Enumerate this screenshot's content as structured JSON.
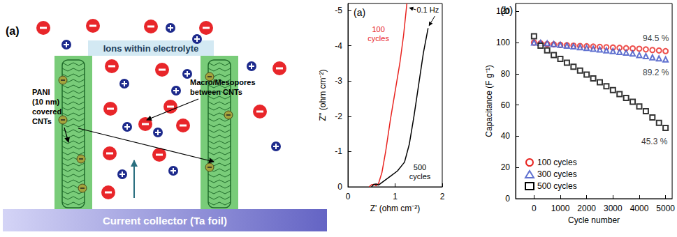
{
  "diagram": {
    "label": "(a)",
    "electrolyte_label": "Ions within electrolyte",
    "cnt_label": [
      "PANI",
      "(10 nm)",
      "covered",
      "CNTs"
    ],
    "pore_label": [
      "Macro/Mesopores",
      "between CNTs"
    ],
    "collector_label": "Current collector (Ta foil)"
  },
  "chart_data": [
    {
      "type": "line",
      "title": "(a)",
      "x_label": "Z' (ohm cm⁻²)",
      "y_label": "Z'' (ohm cm⁻²)",
      "xlim": [
        0,
        2
      ],
      "xticks": [
        0,
        1,
        2
      ],
      "ylim": [
        0,
        -5.2
      ],
      "yticks": [
        0,
        -1,
        -2,
        -3,
        -4,
        -5
      ],
      "grid": false,
      "annotation": "0.1 Hz",
      "series": [
        {
          "name": "100 cycles",
          "color": "#e8231f",
          "x": [
            0.45,
            0.5,
            0.55,
            0.6,
            0.65,
            0.72,
            0.8,
            0.9,
            1.0,
            1.1,
            1.18,
            1.25
          ],
          "values": [
            0,
            -0.06,
            -0.07,
            -0.03,
            -0.1,
            -0.4,
            -1.0,
            -1.9,
            -2.7,
            -3.5,
            -4.3,
            -5.2
          ]
        },
        {
          "name": "500 cycles",
          "color": "#000000",
          "x": [
            0.5,
            0.55,
            0.6,
            0.65,
            0.75,
            0.9,
            1.05,
            1.2,
            1.3,
            1.4,
            1.5,
            1.6,
            1.7
          ],
          "values": [
            0,
            -0.07,
            -0.08,
            -0.05,
            -0.15,
            -0.3,
            -0.45,
            -0.7,
            -1.2,
            -2.0,
            -2.9,
            -3.8,
            -4.5
          ]
        }
      ]
    },
    {
      "type": "scatter",
      "title": "(b)",
      "x_label": "Cycle number",
      "y_label": "Capacitance (F g⁻¹)",
      "xlim": [
        -700,
        5250
      ],
      "xticks": [
        0,
        1000,
        2000,
        3000,
        4000,
        5000
      ],
      "ylim": [
        0,
        125
      ],
      "yticks": [
        0,
        20,
        40,
        60,
        80,
        100,
        120
      ],
      "grid": false,
      "legend": "lower left",
      "data_labels": true,
      "x": [
        0,
        250,
        500,
        750,
        1000,
        1250,
        1500,
        1750,
        2000,
        2250,
        2500,
        2750,
        3000,
        3250,
        3500,
        3750,
        4000,
        4250,
        4500,
        4750,
        5000
      ],
      "series": [
        {
          "name": "100 cycles",
          "color": "#e8231f",
          "marker": "circle",
          "values": [
            100,
            99.5,
            99,
            98.8,
            98.5,
            98.3,
            98,
            97.8,
            97.6,
            97.4,
            97.2,
            97,
            96.8,
            96.6,
            96.4,
            96.2,
            96,
            95.6,
            95.2,
            94.9,
            94.5
          ],
          "value_labels": [
            null,
            null,
            null,
            null,
            null,
            null,
            null,
            null,
            null,
            null,
            null,
            null,
            null,
            null,
            null,
            null,
            null,
            null,
            null,
            null,
            "94.5 %"
          ]
        },
        {
          "name": "300 cycles",
          "color": "#3a4fc4",
          "marker": "triangle",
          "values": [
            100,
            99.8,
            99.5,
            99,
            98.5,
            98,
            97.5,
            97,
            96.5,
            96,
            95.5,
            95,
            94.5,
            94,
            93.5,
            93,
            92,
            91.3,
            90.5,
            89.8,
            89.2
          ],
          "value_labels": [
            null,
            null,
            null,
            null,
            null,
            null,
            null,
            null,
            null,
            null,
            null,
            null,
            null,
            null,
            null,
            null,
            null,
            null,
            null,
            null,
            "89.2 %"
          ]
        },
        {
          "name": "500 cycles",
          "color": "#000000",
          "marker": "square",
          "values": [
            104,
            98,
            95,
            92,
            89.5,
            87,
            84.5,
            82,
            79.5,
            77,
            74.5,
            72,
            69.5,
            67,
            64.5,
            62,
            59,
            56,
            52,
            48.5,
            45.3
          ],
          "value_labels": [
            null,
            null,
            null,
            null,
            null,
            null,
            null,
            null,
            null,
            null,
            null,
            null,
            null,
            null,
            null,
            null,
            null,
            null,
            null,
            null,
            "45.3 %"
          ]
        }
      ]
    }
  ]
}
